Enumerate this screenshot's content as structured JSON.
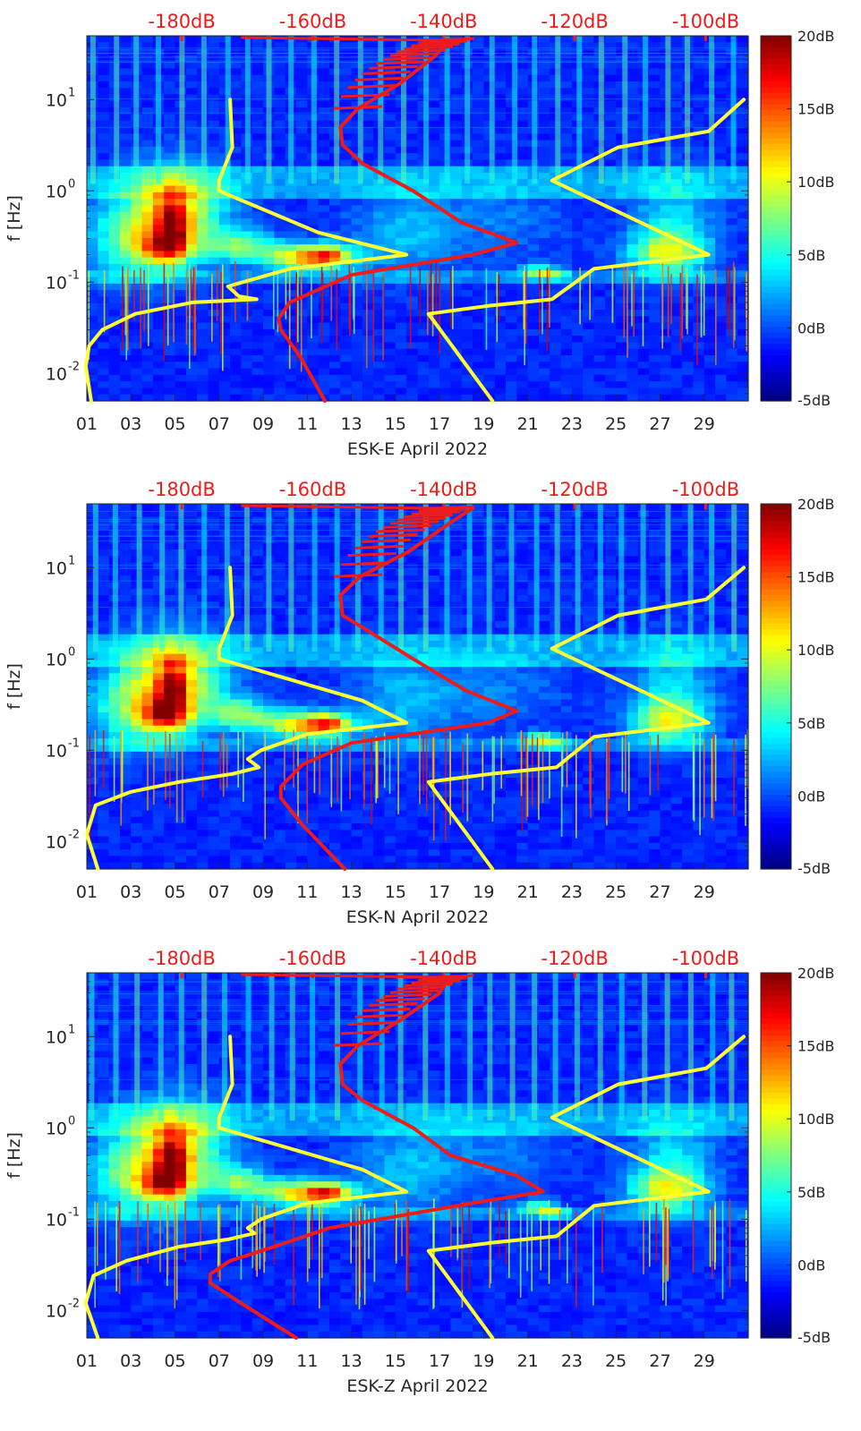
{
  "chart_data": [
    {
      "type": "heatmap",
      "title": "ESK-E April 2022",
      "xlabel": "ESK-E April 2022",
      "ylabel": "f [Hz]",
      "xlim": [
        1,
        31
      ],
      "ylim": [
        0.005,
        50
      ],
      "yscale": "log",
      "x_tick_labels": [
        "01",
        "03",
        "05",
        "07",
        "09",
        "11",
        "13",
        "15",
        "17",
        "19",
        "21",
        "23",
        "25",
        "27",
        "29"
      ],
      "y_tick_labels": [
        {
          "base": "10",
          "exp": "1",
          "value": 10
        },
        {
          "base": "10",
          "exp": "0",
          "value": 1
        },
        {
          "base": "10",
          "exp": "-1",
          "value": 0.1
        },
        {
          "base": "10",
          "exp": "-2",
          "value": 0.01
        }
      ],
      "top_axis_labels": [
        "-180dB",
        "-160dB",
        "-140dB",
        "-120dB",
        "-100dB"
      ],
      "top_axis_values": [
        -180,
        -160,
        -140,
        -120,
        -100
      ],
      "colorbar": {
        "labels": [
          "20dB",
          "15dB",
          "10dB",
          "5dB",
          "0dB",
          "-5dB"
        ],
        "range": [
          -5,
          20
        ]
      },
      "series": [
        {
          "name": "yellow-left",
          "color": "#ffff33",
          "points": [
            [
              0.005,
              1.2
            ],
            [
              0.012,
              0.95
            ],
            [
              0.02,
              1.1
            ],
            [
              0.03,
              1.7
            ],
            [
              0.045,
              3.2
            ],
            [
              0.06,
              5.8
            ],
            [
              0.065,
              8.7
            ],
            [
              0.07,
              7.9
            ],
            [
              0.09,
              7.4
            ],
            [
              0.14,
              10.2
            ],
            [
              0.2,
              15.5
            ],
            [
              0.35,
              11.5
            ],
            [
              1.0,
              7.0
            ],
            [
              1.3,
              7.0
            ],
            [
              3.0,
              7.6
            ],
            [
              10.0,
              7.5
            ]
          ]
        },
        {
          "name": "yellow-right",
          "color": "#ffff33",
          "points": [
            [
              0.005,
              19.4
            ],
            [
              0.045,
              16.5
            ],
            [
              0.055,
              19.2
            ],
            [
              0.065,
              22.1
            ],
            [
              0.14,
              24.0
            ],
            [
              0.2,
              29.2
            ],
            [
              1.3,
              22.1
            ],
            [
              3.0,
              25.1
            ],
            [
              4.5,
              29.2
            ],
            [
              10.0,
              30.8
            ]
          ]
        },
        {
          "name": "red",
          "color": "#ee1b1b",
          "points": [
            [
              0.005,
              11.8
            ],
            [
              0.015,
              10.7
            ],
            [
              0.03,
              9.8
            ],
            [
              0.04,
              9.7
            ],
            [
              0.06,
              10.2
            ],
            [
              0.12,
              13.0
            ],
            [
              0.2,
              18.5
            ],
            [
              0.27,
              20.5
            ],
            [
              0.45,
              18.0
            ],
            [
              1.0,
              15.8
            ],
            [
              2.0,
              13.5
            ],
            [
              3.2,
              12.6
            ],
            [
              5.0,
              12.5
            ],
            [
              8.0,
              13.3
            ],
            [
              15.0,
              15.2
            ],
            [
              30.0,
              16.8
            ],
            [
              45.0,
              17.4
            ]
          ]
        }
      ]
    },
    {
      "type": "heatmap",
      "title": "ESK-N April 2022",
      "xlabel": "ESK-N April 2022",
      "ylabel": "f [Hz]",
      "xlim": [
        1,
        31
      ],
      "ylim": [
        0.005,
        50
      ],
      "yscale": "log",
      "x_tick_labels": [
        "01",
        "03",
        "05",
        "07",
        "09",
        "11",
        "13",
        "15",
        "17",
        "19",
        "21",
        "23",
        "25",
        "27",
        "29"
      ],
      "y_tick_labels": [
        {
          "base": "10",
          "exp": "1",
          "value": 10
        },
        {
          "base": "10",
          "exp": "0",
          "value": 1
        },
        {
          "base": "10",
          "exp": "-1",
          "value": 0.1
        },
        {
          "base": "10",
          "exp": "-2",
          "value": 0.01
        }
      ],
      "top_axis_labels": [
        "-180dB",
        "-160dB",
        "-140dB",
        "-120dB",
        "-100dB"
      ],
      "top_axis_values": [
        -180,
        -160,
        -140,
        -120,
        -100
      ],
      "colorbar": {
        "labels": [
          "20dB",
          "15dB",
          "10dB",
          "5dB",
          "0dB",
          "-5dB"
        ],
        "range": [
          -5,
          20
        ]
      },
      "series": [
        {
          "name": "yellow-left",
          "color": "#ffff33",
          "points": [
            [
              0.005,
              1.5
            ],
            [
              0.012,
              1.0
            ],
            [
              0.025,
              1.4
            ],
            [
              0.035,
              3.0
            ],
            [
              0.045,
              5.2
            ],
            [
              0.055,
              7.6
            ],
            [
              0.065,
              8.8
            ],
            [
              0.08,
              8.3
            ],
            [
              0.1,
              8.9
            ],
            [
              0.15,
              11.0
            ],
            [
              0.2,
              15.5
            ],
            [
              0.35,
              13.5
            ],
            [
              1.0,
              7.0
            ],
            [
              1.3,
              7.0
            ],
            [
              3.0,
              7.6
            ],
            [
              10.0,
              7.5
            ]
          ]
        },
        {
          "name": "yellow-right",
          "color": "#ffff33",
          "points": [
            [
              0.005,
              19.4
            ],
            [
              0.045,
              16.5
            ],
            [
              0.055,
              19.3
            ],
            [
              0.065,
              22.3
            ],
            [
              0.14,
              24.0
            ],
            [
              0.2,
              29.2
            ],
            [
              1.3,
              22.1
            ],
            [
              3.0,
              25.1
            ],
            [
              4.5,
              29.1
            ],
            [
              10.0,
              30.8
            ]
          ]
        },
        {
          "name": "red",
          "color": "#ee1b1b",
          "points": [
            [
              0.005,
              12.7
            ],
            [
              0.015,
              10.8
            ],
            [
              0.03,
              9.8
            ],
            [
              0.04,
              9.8
            ],
            [
              0.07,
              10.8
            ],
            [
              0.12,
              13.0
            ],
            [
              0.2,
              19.2
            ],
            [
              0.27,
              20.5
            ],
            [
              0.45,
              18.2
            ],
            [
              1.0,
              15.8
            ],
            [
              2.0,
              13.8
            ],
            [
              3.0,
              12.6
            ],
            [
              5.0,
              12.5
            ],
            [
              8.0,
              13.4
            ],
            [
              15.0,
              15.6
            ],
            [
              30.0,
              17.4
            ],
            [
              45.0,
              18.5
            ]
          ]
        }
      ]
    },
    {
      "type": "heatmap",
      "title": "ESK-Z April 2022",
      "xlabel": "ESK-Z April 2022",
      "ylabel": "f [Hz]",
      "xlim": [
        1,
        31
      ],
      "ylim": [
        0.005,
        50
      ],
      "yscale": "log",
      "x_tick_labels": [
        "01",
        "03",
        "05",
        "07",
        "09",
        "11",
        "13",
        "15",
        "17",
        "19",
        "21",
        "23",
        "25",
        "27",
        "29"
      ],
      "y_tick_labels": [
        {
          "base": "10",
          "exp": "1",
          "value": 10
        },
        {
          "base": "10",
          "exp": "0",
          "value": 1
        },
        {
          "base": "10",
          "exp": "-1",
          "value": 0.1
        },
        {
          "base": "10",
          "exp": "-2",
          "value": 0.01
        }
      ],
      "top_axis_labels": [
        "-180dB",
        "-160dB",
        "-140dB",
        "-120dB",
        "-100dB"
      ],
      "top_axis_values": [
        -180,
        -160,
        -140,
        -120,
        -100
      ],
      "colorbar": {
        "labels": [
          "20dB",
          "15dB",
          "10dB",
          "5dB",
          "0dB",
          "-5dB"
        ],
        "range": [
          -5,
          20
        ]
      },
      "series": [
        {
          "name": "yellow-left",
          "color": "#ffff33",
          "points": [
            [
              0.005,
              1.5
            ],
            [
              0.012,
              0.95
            ],
            [
              0.024,
              1.3
            ],
            [
              0.035,
              2.8
            ],
            [
              0.05,
              5.2
            ],
            [
              0.06,
              7.4
            ],
            [
              0.07,
              8.6
            ],
            [
              0.08,
              8.3
            ],
            [
              0.1,
              8.9
            ],
            [
              0.15,
              11.0
            ],
            [
              0.2,
              15.5
            ],
            [
              0.35,
              13.5
            ],
            [
              1.0,
              7.0
            ],
            [
              1.3,
              7.0
            ],
            [
              3.0,
              7.6
            ],
            [
              10.0,
              7.5
            ]
          ]
        },
        {
          "name": "yellow-right",
          "color": "#ffff33",
          "points": [
            [
              0.005,
              19.4
            ],
            [
              0.045,
              16.5
            ],
            [
              0.055,
              19.3
            ],
            [
              0.065,
              22.3
            ],
            [
              0.14,
              24.0
            ],
            [
              0.2,
              29.2
            ],
            [
              1.3,
              22.1
            ],
            [
              3.0,
              25.1
            ],
            [
              4.5,
              29.1
            ],
            [
              10.0,
              30.8
            ]
          ]
        },
        {
          "name": "red",
          "color": "#ee1b1b",
          "points": [
            [
              0.005,
              10.5
            ],
            [
              0.012,
              8.0
            ],
            [
              0.02,
              6.6
            ],
            [
              0.025,
              6.6
            ],
            [
              0.035,
              7.5
            ],
            [
              0.05,
              9.5
            ],
            [
              0.08,
              12.0
            ],
            [
              0.15,
              18.5
            ],
            [
              0.2,
              21.7
            ],
            [
              0.3,
              20.5
            ],
            [
              0.5,
              17.5
            ],
            [
              1.0,
              15.8
            ],
            [
              2.0,
              13.5
            ],
            [
              3.0,
              12.6
            ],
            [
              5.0,
              12.5
            ],
            [
              8.0,
              13.3
            ],
            [
              15.0,
              15.2
            ],
            [
              30.0,
              17.0
            ],
            [
              45.0,
              17.4
            ]
          ]
        }
      ]
    }
  ]
}
